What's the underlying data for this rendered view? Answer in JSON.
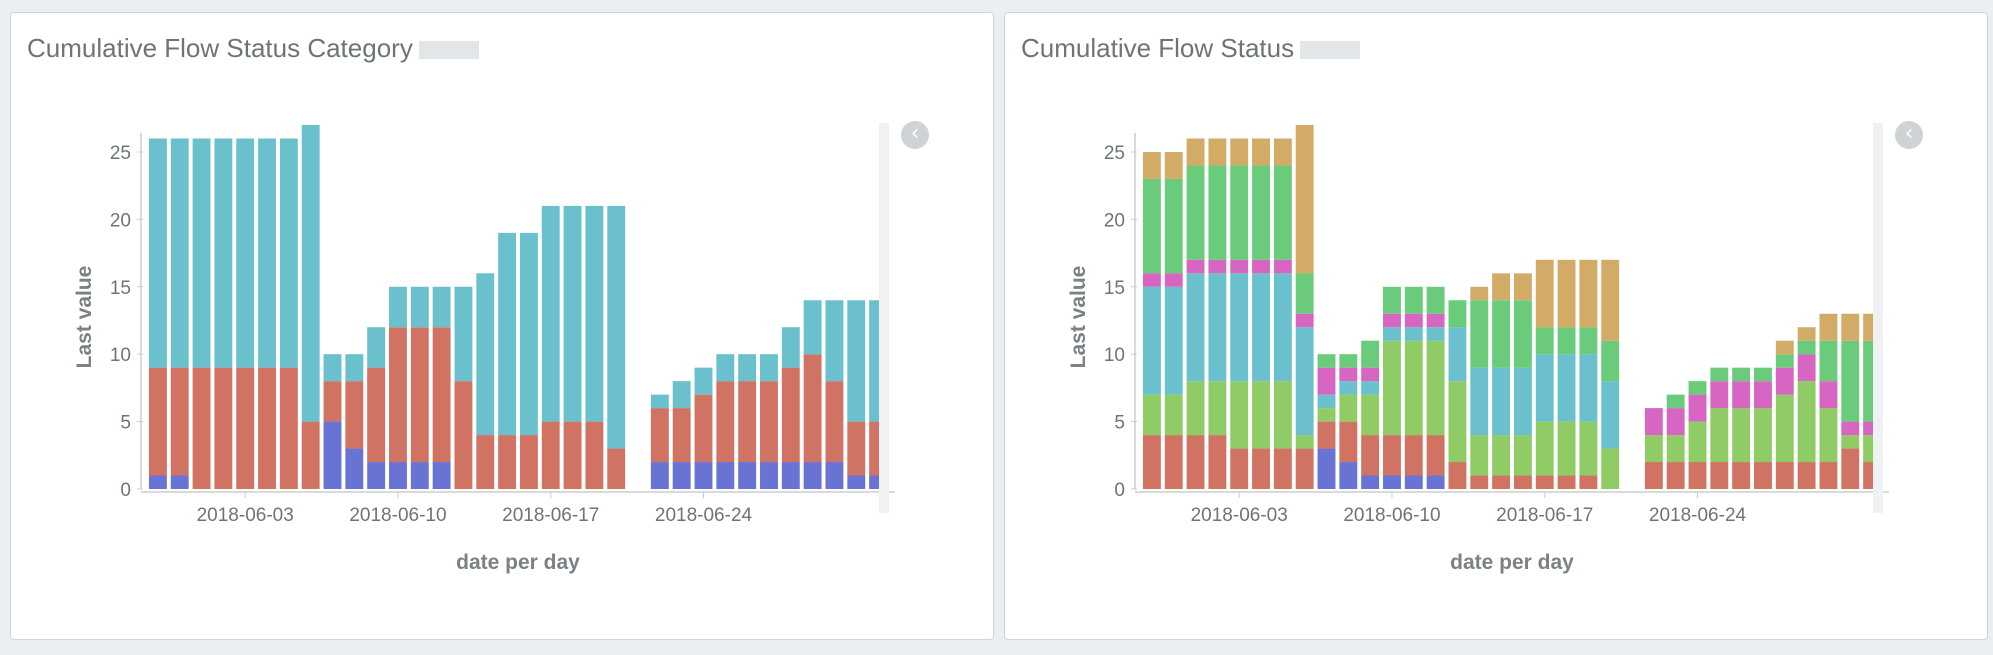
{
  "panels": [
    {
      "title": "Cumulative Flow Status Category"
    },
    {
      "title": "Cumulative Flow Status"
    }
  ],
  "icons": {
    "collapse": "chevron-left-icon"
  },
  "chart_data": [
    {
      "type": "bar",
      "stacked": true,
      "title": "Cumulative Flow Status Category",
      "xlabel": "date per day",
      "ylabel": "Last value",
      "ylim": [
        0,
        27
      ],
      "yticks": [
        0,
        5,
        10,
        15,
        20,
        25
      ],
      "xtick_labels": [
        "2018-06-03",
        "2018-06-10",
        "2018-06-17",
        "2018-06-24"
      ],
      "categories": [
        "2018-05-30",
        "2018-05-31",
        "2018-06-01",
        "2018-06-02",
        "2018-06-03",
        "2018-06-04",
        "2018-06-05",
        "2018-06-06",
        "2018-06-07",
        "2018-06-08",
        "2018-06-09",
        "2018-06-10",
        "2018-06-11",
        "2018-06-12",
        "2018-06-13",
        "2018-06-14",
        "2018-06-15",
        "2018-06-16",
        "2018-06-17",
        "2018-06-18",
        "2018-06-19",
        "2018-06-20",
        "2018-06-21",
        "2018-06-22",
        "2018-06-23",
        "2018-06-24",
        "2018-06-25",
        "2018-06-26",
        "2018-06-27",
        "2018-06-28",
        "2018-06-29",
        "2018-06-30",
        "2018-07-01",
        "2018-07-02"
      ],
      "series": [
        {
          "color": "#6873d4",
          "values": [
            1,
            1,
            0,
            0,
            0,
            0,
            0,
            0,
            5,
            3,
            2,
            2,
            2,
            2,
            0,
            0,
            0,
            0,
            0,
            0,
            0,
            0,
            0,
            2,
            2,
            2,
            2,
            2,
            2,
            2,
            2,
            2,
            1,
            1
          ]
        },
        {
          "color": "#d17363",
          "values": [
            8,
            8,
            9,
            9,
            9,
            9,
            9,
            5,
            3,
            5,
            7,
            10,
            10,
            10,
            8,
            4,
            4,
            4,
            5,
            5,
            5,
            3,
            0,
            4,
            4,
            5,
            6,
            6,
            6,
            7,
            8,
            6,
            4,
            4
          ]
        },
        {
          "color": "#6ac0cc",
          "values": [
            17,
            17,
            17,
            17,
            17,
            17,
            17,
            22,
            2,
            2,
            3,
            3,
            3,
            3,
            7,
            12,
            15,
            15,
            16,
            16,
            16,
            18,
            0,
            1,
            2,
            2,
            2,
            2,
            2,
            3,
            4,
            6,
            9,
            9
          ]
        }
      ]
    },
    {
      "type": "bar",
      "stacked": true,
      "title": "Cumulative Flow Status",
      "xlabel": "date per day",
      "ylabel": "Last value",
      "ylim": [
        0,
        27
      ],
      "yticks": [
        0,
        5,
        10,
        15,
        20,
        25
      ],
      "xtick_labels": [
        "2018-06-03",
        "2018-06-10",
        "2018-06-17",
        "2018-06-24"
      ],
      "categories": [
        "2018-05-30",
        "2018-05-31",
        "2018-06-01",
        "2018-06-02",
        "2018-06-03",
        "2018-06-04",
        "2018-06-05",
        "2018-06-06",
        "2018-06-07",
        "2018-06-08",
        "2018-06-09",
        "2018-06-10",
        "2018-06-11",
        "2018-06-12",
        "2018-06-13",
        "2018-06-14",
        "2018-06-15",
        "2018-06-16",
        "2018-06-17",
        "2018-06-18",
        "2018-06-19",
        "2018-06-20",
        "2018-06-21",
        "2018-06-22",
        "2018-06-23",
        "2018-06-24",
        "2018-06-25",
        "2018-06-26",
        "2018-06-27",
        "2018-06-28",
        "2018-06-29",
        "2018-06-30",
        "2018-07-01",
        "2018-07-02"
      ],
      "series": [
        {
          "color": "#6873d4",
          "values": [
            0,
            0,
            0,
            0,
            0,
            0,
            0,
            0,
            3,
            2,
            1,
            1,
            1,
            1,
            0,
            0,
            0,
            0,
            0,
            0,
            0,
            0,
            0,
            0,
            0,
            0,
            0,
            0,
            0,
            0,
            0,
            0,
            0,
            0
          ]
        },
        {
          "color": "#d17363",
          "values": [
            4,
            4,
            4,
            4,
            3,
            3,
            3,
            3,
            2,
            3,
            3,
            3,
            3,
            3,
            2,
            1,
            1,
            1,
            1,
            1,
            1,
            0,
            0,
            2,
            2,
            2,
            2,
            2,
            2,
            2,
            2,
            2,
            3,
            2
          ]
        },
        {
          "color": "#8fcc66",
          "values": [
            3,
            3,
            4,
            4,
            5,
            5,
            5,
            1,
            1,
            2,
            3,
            7,
            7,
            7,
            6,
            3,
            3,
            3,
            4,
            4,
            4,
            3,
            0,
            2,
            2,
            3,
            4,
            4,
            4,
            5,
            6,
            4,
            1,
            2
          ]
        },
        {
          "color": "#6ac0cc",
          "values": [
            8,
            8,
            8,
            8,
            8,
            8,
            8,
            8,
            1,
            1,
            1,
            1,
            1,
            1,
            4,
            5,
            5,
            5,
            5,
            5,
            5,
            5,
            0,
            0,
            0,
            0,
            0,
            0,
            0,
            0,
            0,
            0,
            0,
            0
          ]
        },
        {
          "color": "#d666c2",
          "values": [
            1,
            1,
            1,
            1,
            1,
            1,
            1,
            1,
            2,
            1,
            1,
            1,
            1,
            1,
            0,
            0,
            0,
            0,
            0,
            0,
            0,
            0,
            0,
            2,
            2,
            2,
            2,
            2,
            2,
            2,
            2,
            2,
            1,
            1
          ]
        },
        {
          "color": "#6acc7b",
          "values": [
            7,
            7,
            7,
            7,
            7,
            7,
            7,
            3,
            1,
            1,
            2,
            2,
            2,
            2,
            2,
            5,
            5,
            5,
            2,
            2,
            2,
            3,
            0,
            0,
            1,
            1,
            1,
            1,
            1,
            1,
            1,
            3,
            6,
            6
          ]
        },
        {
          "color": "#d2ab66",
          "values": [
            2,
            2,
            2,
            2,
            2,
            2,
            2,
            11,
            0,
            0,
            0,
            0,
            0,
            0,
            0,
            1,
            2,
            2,
            5,
            5,
            5,
            6,
            0,
            0,
            0,
            0,
            0,
            0,
            0,
            1,
            1,
            2,
            2,
            2
          ]
        }
      ]
    }
  ]
}
